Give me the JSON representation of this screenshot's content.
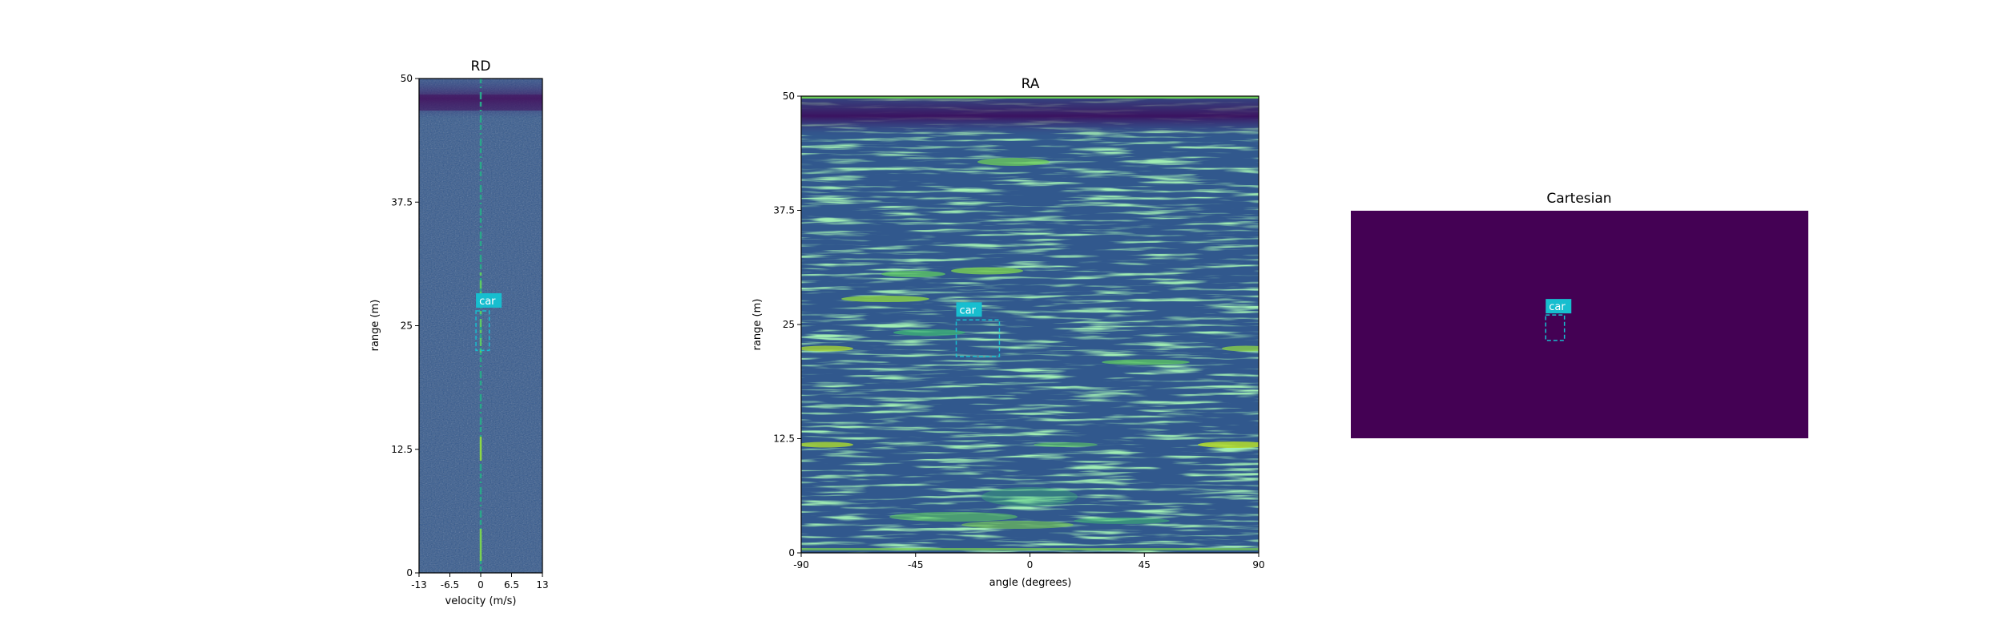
{
  "chart_data": [
    {
      "type": "heatmap",
      "title": "RD",
      "xlabel": "velocity (m/s)",
      "ylabel": "range (m)",
      "xlim": [
        -13,
        13
      ],
      "ylim": [
        0,
        50
      ],
      "xticks": [
        "-13",
        "-6.5",
        "0",
        "6.5",
        "13"
      ],
      "xtick_values": [
        -13,
        -6.5,
        0,
        6.5,
        13
      ],
      "yticks": [
        "0",
        "12.5",
        "25",
        "37.5",
        "50"
      ],
      "ytick_values": [
        0,
        12.5,
        25,
        37.5,
        50
      ],
      "colormap": "viridis",
      "detections": [
        {
          "label": "car",
          "x0": -1.0,
          "x1": 1.8,
          "y0": 22.5,
          "y1": 26.5,
          "color": "#17becf"
        }
      ]
    },
    {
      "type": "heatmap",
      "title": "RA",
      "xlabel": "angle (degrees)",
      "ylabel": "range (m)",
      "xlim": [
        -90,
        90
      ],
      "ylim": [
        0,
        50
      ],
      "xticks": [
        "-90",
        "-45",
        "0",
        "45",
        "90"
      ],
      "xtick_values": [
        -90,
        -45,
        0,
        45,
        90
      ],
      "yticks": [
        "0",
        "12.5",
        "25",
        "37.5",
        "50"
      ],
      "ytick_values": [
        0,
        12.5,
        25,
        37.5,
        50
      ],
      "colormap": "viridis",
      "detections": [
        {
          "label": "car",
          "x0": -29,
          "x1": -12,
          "y0": 21.5,
          "y1": 25.5,
          "color": "#17becf"
        }
      ]
    },
    {
      "type": "heatmap",
      "title": "Cartesian",
      "colormap": "viridis",
      "background": "#440154",
      "axes_visible": false,
      "detections": [
        {
          "label": "car",
          "x0": 0.426,
          "x1": 0.467,
          "y0": 0.43,
          "y1": 0.57,
          "color": "#17becf"
        }
      ]
    }
  ]
}
